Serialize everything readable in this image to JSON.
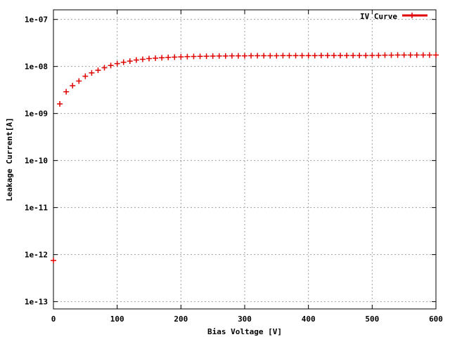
{
  "chart_data": {
    "type": "scatter",
    "xlabel": "Bias Voltage [V]",
    "ylabel": "Leakage Current[A]",
    "xlim": [
      0,
      600
    ],
    "ylim": [
      7e-14,
      1.6e-07
    ],
    "y_scale": "log",
    "grid": true,
    "legend_position": "top-right",
    "x_ticks": [
      {
        "value": 0,
        "label": "0"
      },
      {
        "value": 100,
        "label": "100"
      },
      {
        "value": 200,
        "label": "200"
      },
      {
        "value": 300,
        "label": "300"
      },
      {
        "value": 400,
        "label": "400"
      },
      {
        "value": 500,
        "label": "500"
      },
      {
        "value": 600,
        "label": "600"
      }
    ],
    "y_ticks": [
      {
        "value": 1e-13,
        "label": "1e-13"
      },
      {
        "value": 1e-12,
        "label": "1e-12"
      },
      {
        "value": 1e-11,
        "label": "1e-11"
      },
      {
        "value": 1e-10,
        "label": "1e-10"
      },
      {
        "value": 1e-09,
        "label": "1e-09"
      },
      {
        "value": 1e-08,
        "label": "1e-08"
      },
      {
        "value": 1e-07,
        "label": "1e-07"
      }
    ],
    "series": [
      {
        "name": "IV Curve",
        "color": "#e00000",
        "marker": "plus",
        "x": [
          0,
          10,
          20,
          30,
          40,
          50,
          60,
          70,
          80,
          90,
          100,
          110,
          120,
          130,
          140,
          150,
          160,
          170,
          180,
          190,
          200,
          210,
          220,
          230,
          240,
          250,
          260,
          270,
          280,
          290,
          300,
          310,
          320,
          330,
          340,
          350,
          360,
          370,
          380,
          390,
          400,
          410,
          420,
          430,
          440,
          450,
          460,
          470,
          480,
          490,
          500,
          510,
          520,
          530,
          540,
          550,
          560,
          570,
          580,
          590,
          600
        ],
        "y": [
          7.5e-13,
          1.6e-09,
          2.9e-09,
          3.9e-09,
          4.9e-09,
          6.2e-09,
          7.3e-09,
          8.3e-09,
          9.4e-09,
          1.05e-08,
          1.15e-08,
          1.23e-08,
          1.3e-08,
          1.37e-08,
          1.42e-08,
          1.47e-08,
          1.5e-08,
          1.53e-08,
          1.56e-08,
          1.58e-08,
          1.6e-08,
          1.62e-08,
          1.63e-08,
          1.64e-08,
          1.65e-08,
          1.66e-08,
          1.67e-08,
          1.67e-08,
          1.68e-08,
          1.68e-08,
          1.68e-08,
          1.69e-08,
          1.69e-08,
          1.69e-08,
          1.69e-08,
          1.69e-08,
          1.7e-08,
          1.7e-08,
          1.7e-08,
          1.7e-08,
          1.7e-08,
          1.7e-08,
          1.71e-08,
          1.71e-08,
          1.71e-08,
          1.71e-08,
          1.71e-08,
          1.71e-08,
          1.71e-08,
          1.71e-08,
          1.72e-08,
          1.72e-08,
          1.74e-08,
          1.74e-08,
          1.75e-08,
          1.75e-08,
          1.75e-08,
          1.75e-08,
          1.75e-08,
          1.75e-08,
          1.75e-08
        ]
      }
    ]
  }
}
